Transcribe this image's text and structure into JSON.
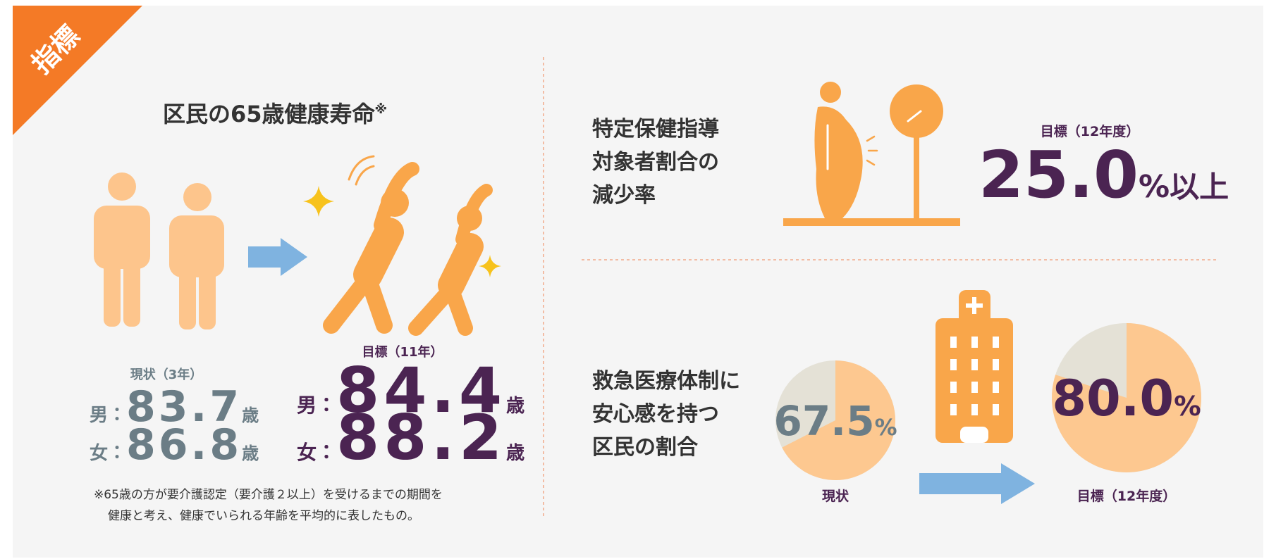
{
  "badge": "指標",
  "lifespan": {
    "title": "区民の65歳健康寿命",
    "title_mark": "※",
    "current": {
      "label": "現状（3年）",
      "rows": [
        {
          "sex": "男",
          "sep": "：",
          "value": 83.7,
          "unit": "歳"
        },
        {
          "sex": "女",
          "sep": "：",
          "value": 86.8,
          "unit": "歳"
        }
      ]
    },
    "target": {
      "label": "目標（11年）",
      "rows": [
        {
          "sex": "男",
          "sep": "：",
          "value": 84.4,
          "unit": "歳"
        },
        {
          "sex": "女",
          "sep": "：",
          "value": 88.2,
          "unit": "歳"
        }
      ]
    },
    "footnote": [
      "※65歳の方が要介護認定（要介護２以上）を受けるまでの期間を",
      "健康と考え、健康でいられる年齢を平均的に表したもの。"
    ]
  },
  "guidance": {
    "lines": [
      "特定保健指導",
      "対象者割合の",
      "減少率"
    ],
    "target_label": "目標（12年度）",
    "value": "25.0",
    "unit": "%",
    "suffix": "以上"
  },
  "emergency": {
    "lines": [
      "救急医療体制に",
      "安心感を持つ",
      "区民の割合"
    ],
    "current": {
      "value": 67.5,
      "label": "67.5",
      "unit": "%",
      "caption": "現状"
    },
    "target": {
      "value": 80,
      "label": "80.0",
      "unit": "%",
      "caption": "目標（12年度）"
    }
  }
}
